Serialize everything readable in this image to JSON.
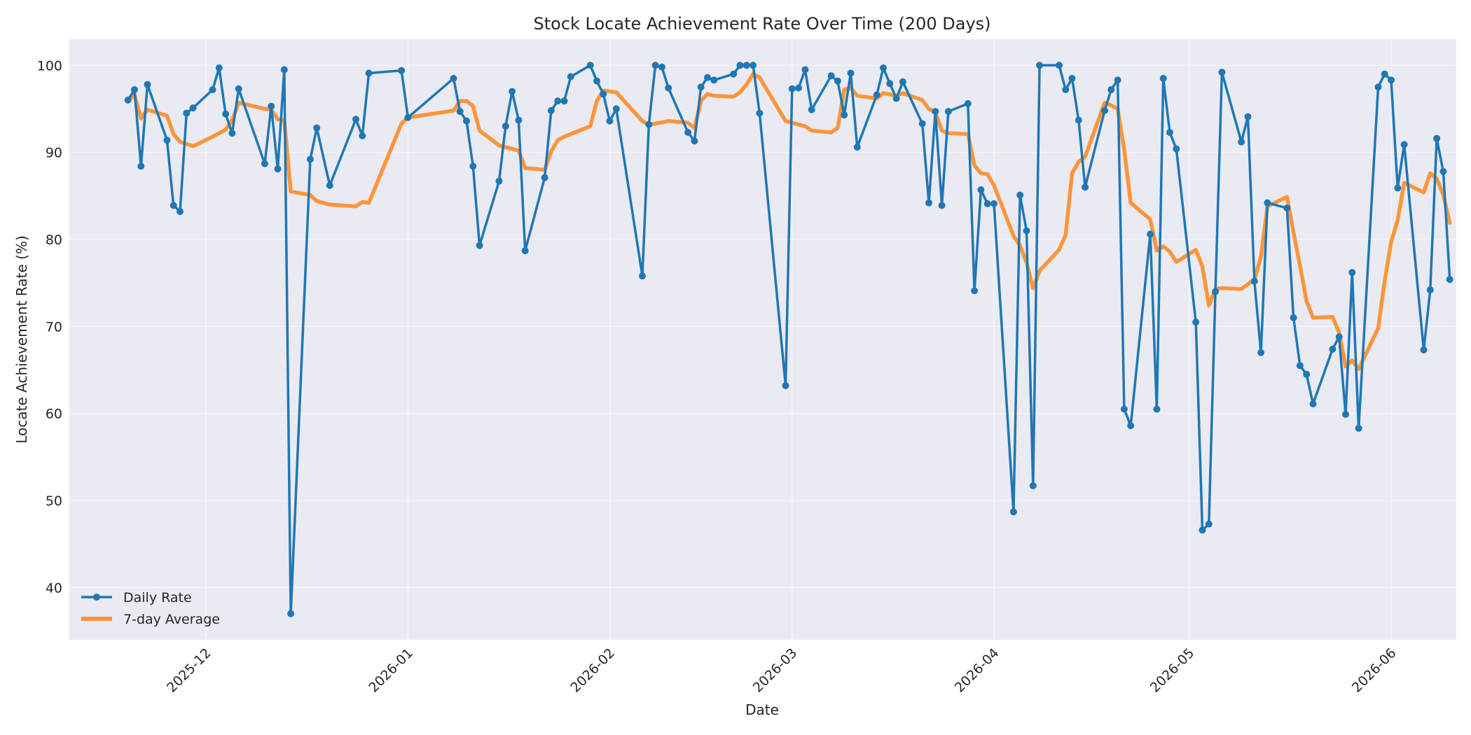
{
  "chart_data": {
    "type": "line",
    "title": "Stock Locate Achievement Rate Over Time (200 Days)",
    "xlabel": "Date",
    "ylabel": "Locate Achievement Rate (%)",
    "xlim": [
      "2025-11-10",
      "2026-06-11"
    ],
    "ylim": [
      34,
      103
    ],
    "x_ticks": [
      "2025-12-01",
      "2026-01-01",
      "2026-02-01",
      "2026-03-01",
      "2026-04-01",
      "2026-05-01",
      "2026-06-01"
    ],
    "x_tick_labels": [
      "2025-12",
      "2026-01",
      "2026-02",
      "2026-03",
      "2026-04",
      "2026-05",
      "2026-06"
    ],
    "y_ticks": [
      40,
      50,
      60,
      70,
      80,
      90,
      100
    ],
    "y_tick_labels": [
      "40",
      "50",
      "60",
      "70",
      "80",
      "90",
      "100"
    ],
    "grid": true,
    "legend_position": "lower-left",
    "colors": {
      "daily": "#1f77b4",
      "avg": "#ff7f0e",
      "plot_bg": "#eaeaf2"
    },
    "series": [
      {
        "name": "Daily Rate",
        "marker": true,
        "points": [
          [
            "2025-11-19",
            96.0
          ],
          [
            "2025-11-20",
            97.2
          ],
          [
            "2025-11-21",
            88.4
          ],
          [
            "2025-11-22",
            97.8
          ],
          [
            "2025-11-25",
            91.4
          ],
          [
            "2025-11-26",
            83.9
          ],
          [
            "2025-11-27",
            83.2
          ],
          [
            "2025-11-28",
            94.5
          ],
          [
            "2025-11-29",
            95.1
          ],
          [
            "2025-12-02",
            97.2
          ],
          [
            "2025-12-03",
            99.7
          ],
          [
            "2025-12-04",
            94.4
          ],
          [
            "2025-12-05",
            92.2
          ],
          [
            "2025-12-06",
            97.3
          ],
          [
            "2025-12-10",
            88.7
          ],
          [
            "2025-12-11",
            95.3
          ],
          [
            "2025-12-12",
            88.1
          ],
          [
            "2025-12-13",
            99.5
          ],
          [
            "2025-12-14",
            37.0
          ],
          [
            "2025-12-17",
            89.2
          ],
          [
            "2025-12-18",
            92.8
          ],
          [
            "2025-12-20",
            86.2
          ],
          [
            "2025-12-24",
            93.8
          ],
          [
            "2025-12-25",
            91.9
          ],
          [
            "2025-12-26",
            99.1
          ],
          [
            "2025-12-31",
            99.4
          ],
          [
            "2026-01-01",
            94.0
          ],
          [
            "2026-01-08",
            98.5
          ],
          [
            "2026-01-09",
            94.7
          ],
          [
            "2026-01-10",
            93.6
          ],
          [
            "2026-01-11",
            88.4
          ],
          [
            "2026-01-12",
            79.3
          ],
          [
            "2026-01-15",
            86.7
          ],
          [
            "2026-01-16",
            93.0
          ],
          [
            "2026-01-17",
            97.0
          ],
          [
            "2026-01-18",
            93.7
          ],
          [
            "2026-01-19",
            78.7
          ],
          [
            "2026-01-22",
            87.1
          ],
          [
            "2026-01-23",
            94.8
          ],
          [
            "2026-01-24",
            95.9
          ],
          [
            "2026-01-25",
            95.9
          ],
          [
            "2026-01-26",
            98.7
          ],
          [
            "2026-01-29",
            100.0
          ],
          [
            "2026-01-30",
            98.2
          ],
          [
            "2026-01-31",
            96.7
          ],
          [
            "2026-02-01",
            93.6
          ],
          [
            "2026-02-02",
            95.0
          ],
          [
            "2026-02-06",
            75.8
          ],
          [
            "2026-02-07",
            93.2
          ],
          [
            "2026-02-08",
            100.0
          ],
          [
            "2026-02-09",
            99.8
          ],
          [
            "2026-02-10",
            97.4
          ],
          [
            "2026-02-13",
            92.3
          ],
          [
            "2026-02-14",
            91.3
          ],
          [
            "2026-02-15",
            97.5
          ],
          [
            "2026-02-16",
            98.6
          ],
          [
            "2026-02-17",
            98.3
          ],
          [
            "2026-02-20",
            99.0
          ],
          [
            "2026-02-21",
            100.0
          ],
          [
            "2026-02-22",
            100.0
          ],
          [
            "2026-02-23",
            100.0
          ],
          [
            "2026-02-24",
            94.5
          ],
          [
            "2026-02-28",
            63.2
          ],
          [
            "2026-03-01",
            97.3
          ],
          [
            "2026-03-02",
            97.4
          ],
          [
            "2026-03-03",
            99.5
          ],
          [
            "2026-03-04",
            94.9
          ],
          [
            "2026-03-07",
            98.8
          ],
          [
            "2026-03-08",
            98.2
          ],
          [
            "2026-03-09",
            94.3
          ],
          [
            "2026-03-10",
            99.1
          ],
          [
            "2026-03-11",
            90.6
          ],
          [
            "2026-03-14",
            96.6
          ],
          [
            "2026-03-15",
            99.7
          ],
          [
            "2026-03-16",
            97.9
          ],
          [
            "2026-03-17",
            96.2
          ],
          [
            "2026-03-18",
            98.1
          ],
          [
            "2026-03-21",
            93.3
          ],
          [
            "2026-03-22",
            84.2
          ],
          [
            "2026-03-23",
            94.7
          ],
          [
            "2026-03-24",
            83.9
          ],
          [
            "2026-03-25",
            94.7
          ],
          [
            "2026-03-28",
            95.6
          ],
          [
            "2026-03-29",
            74.1
          ],
          [
            "2026-03-30",
            85.7
          ],
          [
            "2026-03-31",
            84.1
          ],
          [
            "2026-04-01",
            84.1
          ],
          [
            "2026-04-04",
            48.7
          ],
          [
            "2026-04-05",
            85.1
          ],
          [
            "2026-04-06",
            81.0
          ],
          [
            "2026-04-07",
            51.7
          ],
          [
            "2026-04-08",
            100.0
          ],
          [
            "2026-04-11",
            100.0
          ],
          [
            "2026-04-12",
            97.2
          ],
          [
            "2026-04-13",
            98.5
          ],
          [
            "2026-04-14",
            93.7
          ],
          [
            "2026-04-15",
            86.0
          ],
          [
            "2026-04-18",
            94.8
          ],
          [
            "2026-04-19",
            97.2
          ],
          [
            "2026-04-20",
            98.3
          ],
          [
            "2026-04-21",
            60.5
          ],
          [
            "2026-04-22",
            58.6
          ],
          [
            "2026-04-25",
            80.6
          ],
          [
            "2026-04-26",
            60.5
          ],
          [
            "2026-04-27",
            98.5
          ],
          [
            "2026-04-28",
            92.3
          ],
          [
            "2026-04-29",
            90.4
          ],
          [
            "2026-05-02",
            70.5
          ],
          [
            "2026-05-03",
            46.6
          ],
          [
            "2026-05-04",
            47.3
          ],
          [
            "2026-05-05",
            74.0
          ],
          [
            "2026-05-06",
            99.2
          ],
          [
            "2026-05-09",
            91.2
          ],
          [
            "2026-05-10",
            94.1
          ],
          [
            "2026-05-11",
            75.2
          ],
          [
            "2026-05-12",
            67.0
          ],
          [
            "2026-05-13",
            84.2
          ],
          [
            "2026-05-16",
            83.6
          ],
          [
            "2026-05-17",
            71.0
          ],
          [
            "2026-05-18",
            65.5
          ],
          [
            "2026-05-19",
            64.5
          ],
          [
            "2026-05-20",
            61.1
          ],
          [
            "2026-05-23",
            67.4
          ],
          [
            "2026-05-24",
            68.8
          ],
          [
            "2026-05-25",
            59.9
          ],
          [
            "2026-05-26",
            76.2
          ],
          [
            "2026-05-27",
            58.3
          ],
          [
            "2026-05-30",
            97.5
          ],
          [
            "2026-05-31",
            99.0
          ],
          [
            "2026-06-01",
            98.3
          ],
          [
            "2026-06-02",
            85.9
          ],
          [
            "2026-06-03",
            90.9
          ],
          [
            "2026-06-06",
            67.3
          ],
          [
            "2026-06-07",
            74.2
          ],
          [
            "2026-06-08",
            91.6
          ],
          [
            "2026-06-09",
            87.8
          ],
          [
            "2026-06-10",
            75.4
          ]
        ]
      },
      {
        "name": "7-day Average",
        "marker": false,
        "points": [
          [
            "2025-11-19",
            96.0
          ],
          [
            "2025-11-20",
            96.6
          ],
          [
            "2025-11-21",
            93.9
          ],
          [
            "2025-11-22",
            94.9
          ],
          [
            "2025-11-25",
            94.2
          ],
          [
            "2025-11-26",
            92.1
          ],
          [
            "2025-11-27",
            91.2
          ],
          [
            "2025-11-29",
            90.7
          ],
          [
            "2025-12-02",
            91.8
          ],
          [
            "2025-12-03",
            92.2
          ],
          [
            "2025-12-04",
            92.6
          ],
          [
            "2025-12-05",
            93.7
          ],
          [
            "2025-12-06",
            95.7
          ],
          [
            "2025-12-10",
            95.0
          ],
          [
            "2025-12-11",
            94.9
          ],
          [
            "2025-12-12",
            93.8
          ],
          [
            "2025-12-13",
            93.7
          ],
          [
            "2025-12-14",
            85.5
          ],
          [
            "2025-12-17",
            85.1
          ],
          [
            "2025-12-18",
            84.4
          ],
          [
            "2025-12-20",
            84.0
          ],
          [
            "2025-12-24",
            83.8
          ],
          [
            "2025-12-25",
            84.3
          ],
          [
            "2025-12-26",
            84.2
          ],
          [
            "2025-12-31",
            93.3
          ],
          [
            "2026-01-01",
            94.0
          ],
          [
            "2026-01-08",
            94.8
          ],
          [
            "2026-01-09",
            95.9
          ],
          [
            "2026-01-10",
            95.9
          ],
          [
            "2026-01-11",
            95.3
          ],
          [
            "2026-01-12",
            92.5
          ],
          [
            "2026-01-15",
            90.8
          ],
          [
            "2026-01-17",
            90.4
          ],
          [
            "2026-01-18",
            90.2
          ],
          [
            "2026-01-19",
            88.2
          ],
          [
            "2026-01-22",
            88.0
          ],
          [
            "2026-01-23",
            90.1
          ],
          [
            "2026-01-24",
            91.4
          ],
          [
            "2026-01-25",
            91.8
          ],
          [
            "2026-01-29",
            93.0
          ],
          [
            "2026-01-30",
            95.9
          ],
          [
            "2026-01-31",
            97.1
          ],
          [
            "2026-02-02",
            96.9
          ],
          [
            "2026-02-06",
            93.6
          ],
          [
            "2026-02-07",
            93.2
          ],
          [
            "2026-02-08",
            93.3
          ],
          [
            "2026-02-10",
            93.6
          ],
          [
            "2026-02-13",
            93.4
          ],
          [
            "2026-02-14",
            92.8
          ],
          [
            "2026-02-15",
            95.9
          ],
          [
            "2026-02-16",
            96.7
          ],
          [
            "2026-02-17",
            96.5
          ],
          [
            "2026-02-20",
            96.4
          ],
          [
            "2026-02-21",
            96.9
          ],
          [
            "2026-02-22",
            97.8
          ],
          [
            "2026-02-23",
            99.0
          ],
          [
            "2026-02-24",
            98.6
          ],
          [
            "2026-02-28",
            93.6
          ],
          [
            "2026-03-03",
            93.0
          ],
          [
            "2026-03-04",
            92.5
          ],
          [
            "2026-03-07",
            92.3
          ],
          [
            "2026-03-08",
            92.8
          ],
          [
            "2026-03-09",
            97.2
          ],
          [
            "2026-03-10",
            97.4
          ],
          [
            "2026-03-11",
            96.5
          ],
          [
            "2026-03-14",
            96.2
          ],
          [
            "2026-03-15",
            96.8
          ],
          [
            "2026-03-17",
            96.5
          ],
          [
            "2026-03-18",
            96.8
          ],
          [
            "2026-03-21",
            96.0
          ],
          [
            "2026-03-22",
            95.0
          ],
          [
            "2026-03-23",
            94.6
          ],
          [
            "2026-03-24",
            92.5
          ],
          [
            "2026-03-25",
            92.2
          ],
          [
            "2026-03-28",
            92.1
          ],
          [
            "2026-03-29",
            88.5
          ],
          [
            "2026-03-30",
            87.6
          ],
          [
            "2026-03-31",
            87.5
          ],
          [
            "2026-04-01",
            86.2
          ],
          [
            "2026-04-04",
            80.4
          ],
          [
            "2026-04-05",
            79.3
          ],
          [
            "2026-04-06",
            77.3
          ],
          [
            "2026-04-07",
            74.4
          ],
          [
            "2026-04-08",
            76.4
          ],
          [
            "2026-04-11",
            78.8
          ],
          [
            "2026-04-12",
            80.5
          ],
          [
            "2026-04-13",
            87.6
          ],
          [
            "2026-04-14",
            88.9
          ],
          [
            "2026-04-15",
            89.5
          ],
          [
            "2026-04-18",
            95.7
          ],
          [
            "2026-04-19",
            95.4
          ],
          [
            "2026-04-20",
            95.0
          ],
          [
            "2026-04-21",
            90.3
          ],
          [
            "2026-04-22",
            84.2
          ],
          [
            "2026-04-25",
            82.3
          ],
          [
            "2026-04-26",
            78.7
          ],
          [
            "2026-04-27",
            79.2
          ],
          [
            "2026-04-28",
            78.6
          ],
          [
            "2026-04-29",
            77.4
          ],
          [
            "2026-05-02",
            78.8
          ],
          [
            "2026-05-03",
            76.9
          ],
          [
            "2026-05-04",
            72.4
          ],
          [
            "2026-05-05",
            74.3
          ],
          [
            "2026-05-06",
            74.4
          ],
          [
            "2026-05-09",
            74.3
          ],
          [
            "2026-05-11",
            75.4
          ],
          [
            "2026-05-12",
            78.0
          ],
          [
            "2026-05-13",
            83.8
          ],
          [
            "2026-05-16",
            84.9
          ],
          [
            "2026-05-17",
            80.8
          ],
          [
            "2026-05-18",
            77.0
          ],
          [
            "2026-05-19",
            72.9
          ],
          [
            "2026-05-20",
            71.0
          ],
          [
            "2026-05-23",
            71.1
          ],
          [
            "2026-05-24",
            69.3
          ],
          [
            "2026-05-25",
            65.4
          ],
          [
            "2026-05-26",
            66.1
          ],
          [
            "2026-05-27",
            65.1
          ],
          [
            "2026-05-30",
            69.8
          ],
          [
            "2026-05-31",
            75.2
          ],
          [
            "2026-06-01",
            79.7
          ],
          [
            "2026-06-02",
            82.2
          ],
          [
            "2026-06-03",
            86.5
          ],
          [
            "2026-06-06",
            85.4
          ],
          [
            "2026-06-07",
            87.6
          ],
          [
            "2026-06-08",
            87.0
          ],
          [
            "2026-06-09",
            85.1
          ],
          [
            "2026-06-10",
            81.9
          ]
        ]
      }
    ]
  }
}
